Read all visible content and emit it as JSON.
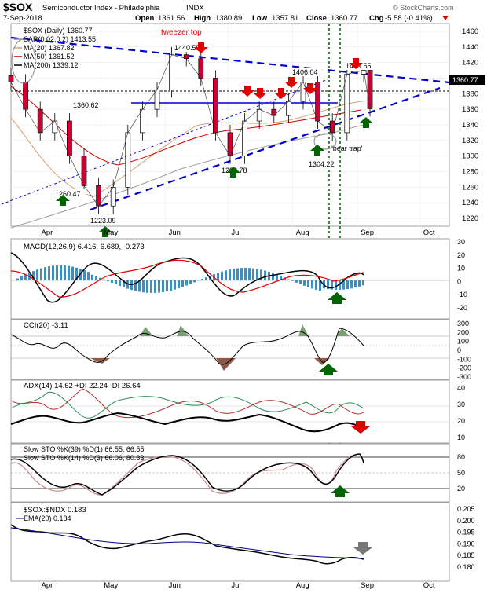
{
  "header": {
    "symbol": "$SOX",
    "name": "Semiconductor Index - Philadelphia",
    "exchange": "INDX",
    "date": "7-Sep-2018",
    "open_label": "Open",
    "open": "1361.56",
    "high_label": "High",
    "high": "1380.89",
    "low_label": "Low",
    "low": "1357.81",
    "close_label": "Close",
    "close": "1360.77",
    "chg_label": "Chg",
    "chg": "-5.58 (-0.41%)",
    "watermark": "© StockCharts.com"
  },
  "colors": {
    "price_line": "#000000",
    "ma20": "#d8a070",
    "ma50": "#cc0000",
    "ma200": "#a0a0a0",
    "trend_blue": "#0000cc",
    "macd_hist": "#3d8fc0",
    "cci_fill": "#7a9f73",
    "arrow_up": "#006400",
    "arrow_down": "#e00000",
    "ratio_line": "#000000",
    "ema20": "#000080",
    "dashed_vertical": "#006400"
  },
  "months": [
    "Apr",
    "May",
    "Jun",
    "Jul",
    "Aug",
    "Sep",
    "Oct"
  ],
  "price_panel": {
    "legend": [
      {
        "text": "$SOX (Daily) 1360.77"
      },
      {
        "text": "SAR(0.02,0.2) 1413.55"
      },
      {
        "text": "MA(20) 1367.82"
      },
      {
        "text": "MA(50) 1361.52"
      },
      {
        "text": "MA(200) 1339.12"
      }
    ],
    "annotations": {
      "tweezer_top": "tweezer top",
      "bear_trap": "'bear trap'",
      "last_price": "1360.77"
    },
    "price_labels": [
      "1440.55",
      "1406.04",
      "1360.62",
      "1260.47",
      "1223.09",
      "1292.78",
      "1304.22",
      "1419.55"
    ],
    "y_ticks": [
      "1460",
      "1440",
      "1420",
      "1400",
      "1380",
      "1360",
      "1340",
      "1320",
      "1300",
      "1280",
      "1260",
      "1240",
      "1220"
    ]
  },
  "macd_panel": {
    "label": "MACD(12,26,9) 6.416, 6.689, -0.273",
    "y_ticks": [
      "30",
      "20",
      "10",
      "0",
      "-10",
      "-20"
    ]
  },
  "cci_panel": {
    "label": "CCI(20) -3.11",
    "y_ticks": [
      "300",
      "200",
      "100",
      "0",
      "-100",
      "-200",
      "-300"
    ]
  },
  "adx_panel": {
    "label": "ADX(14) 14.62 +DI 22.24 -DI 26.64",
    "y_ticks": [
      "40",
      "30",
      "20",
      "10"
    ]
  },
  "sto_panel": {
    "label1": "Slow STO %K(39) %D(1) 66.55, 66.55",
    "label2": "Slow STO %K(14) %D(3) 66.06, 80.83",
    "y_ticks": [
      "80",
      "50",
      "20"
    ]
  },
  "ratio_panel": {
    "label1": "$SOX:$NDX 0.183",
    "label2": "EMA(20) 0.184",
    "y_ticks": [
      "0.205",
      "0.200",
      "0.195",
      "0.190",
      "0.185",
      "0.180"
    ]
  },
  "chart_data": {
    "type": "line",
    "title": "$SOX Semiconductor Index - Philadelphia INDX (Daily)",
    "x_range": [
      "2018-03-19",
      "2018-10-15"
    ],
    "price_series": [
      {
        "date": "2018-03-19",
        "close": 1395
      },
      {
        "date": "2018-03-26",
        "close": 1360
      },
      {
        "date": "2018-04-02",
        "close": 1330
      },
      {
        "date": "2018-04-09",
        "close": 1345
      },
      {
        "date": "2018-04-16",
        "close": 1300
      },
      {
        "date": "2018-04-23",
        "close": 1262
      },
      {
        "date": "2018-04-30",
        "close": 1236
      },
      {
        "date": "2018-05-07",
        "close": 1260
      },
      {
        "date": "2018-05-14",
        "close": 1330
      },
      {
        "date": "2018-05-21",
        "close": 1360
      },
      {
        "date": "2018-05-28",
        "close": 1385
      },
      {
        "date": "2018-06-04",
        "close": 1430
      },
      {
        "date": "2018-06-11",
        "close": 1425
      },
      {
        "date": "2018-06-18",
        "close": 1400
      },
      {
        "date": "2018-06-25",
        "close": 1330
      },
      {
        "date": "2018-07-02",
        "close": 1300
      },
      {
        "date": "2018-07-09",
        "close": 1345
      },
      {
        "date": "2018-07-16",
        "close": 1360
      },
      {
        "date": "2018-07-23",
        "close": 1352
      },
      {
        "date": "2018-07-30",
        "close": 1370
      },
      {
        "date": "2018-08-06",
        "close": 1395
      },
      {
        "date": "2018-08-13",
        "close": 1345
      },
      {
        "date": "2018-08-20",
        "close": 1330
      },
      {
        "date": "2018-08-27",
        "close": 1405
      },
      {
        "date": "2018-09-04",
        "close": 1410
      },
      {
        "date": "2018-09-07",
        "close": 1360.77
      }
    ],
    "ylim": [
      1210,
      1470
    ]
  }
}
